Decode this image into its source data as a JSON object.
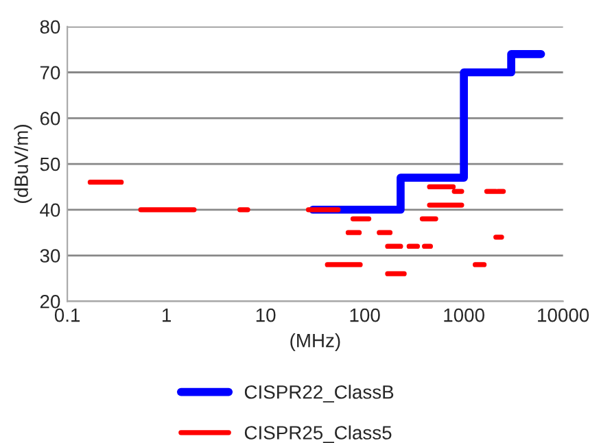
{
  "chart_data": {
    "type": "line",
    "xlabel": "(MHz)",
    "ylabel": "(dBuV/m)",
    "log": "x",
    "xlim": [
      0.1,
      10000
    ],
    "xticks": [
      {
        "value": 0.1,
        "label": "0.1"
      },
      {
        "value": 1,
        "label": "1"
      },
      {
        "value": 10,
        "label": "10"
      },
      {
        "value": 100,
        "label": "100"
      },
      {
        "value": 1000,
        "label": "1000"
      },
      {
        "value": 10000,
        "label": "10000"
      }
    ],
    "ylim": [
      20,
      80
    ],
    "yticks": [
      20,
      30,
      40,
      50,
      60,
      70,
      80
    ],
    "grid": "y",
    "legend": "bottom",
    "line_style": "solid",
    "marker": "none",
    "series": [
      {
        "name": "CISPR22_ClassB",
        "color": "#0000ff",
        "x": [
          30,
          230,
          230,
          1000,
          1000,
          3000,
          3000,
          6000
        ],
        "values": [
          40,
          40,
          47,
          47,
          70,
          70,
          74,
          74
        ]
      },
      {
        "name": "CISPR25_Class5",
        "color": "#ff0000",
        "x": [
          0.17,
          0.35,
          null,
          0.55,
          1.9,
          null,
          5.5,
          6.6,
          null,
          27,
          54,
          null,
          42,
          90,
          null,
          76,
          110,
          null,
          68,
          88,
          null,
          140,
          180,
          null,
          170,
          230,
          null,
          170,
          250,
          null,
          280,
          340,
          null,
          400,
          460,
          null,
          380,
          520,
          null,
          450,
          780,
          null,
          800,
          950,
          null,
          450,
          950,
          null,
          1700,
          2100,
          null,
          2200,
          2500,
          null,
          2100,
          2400,
          null,
          1300,
          1600
        ],
        "values": [
          46,
          46,
          null,
          40,
          40,
          null,
          40,
          40,
          null,
          40,
          40,
          null,
          28,
          28,
          null,
          38,
          38,
          null,
          35,
          35,
          null,
          35,
          35,
          null,
          32,
          32,
          null,
          26,
          26,
          null,
          32,
          32,
          null,
          32,
          32,
          null,
          38,
          38,
          null,
          45,
          45,
          null,
          44,
          44,
          null,
          41,
          41,
          null,
          44,
          44,
          null,
          44,
          44,
          null,
          34,
          34,
          null,
          28,
          28
        ]
      }
    ]
  }
}
